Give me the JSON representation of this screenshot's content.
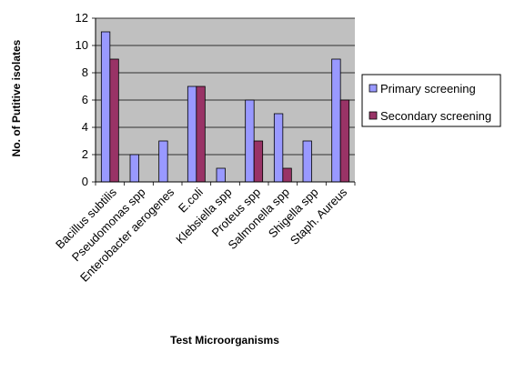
{
  "chart_data": {
    "type": "bar",
    "title": "",
    "xlabel": "Test Microorganisms",
    "ylabel": "No. of  Putitive  isolates",
    "ylim": [
      0,
      12
    ],
    "yticks": [
      0,
      2,
      4,
      6,
      8,
      10,
      12
    ],
    "grid": true,
    "legend_position": "right",
    "categories": [
      "Bacillus subtilis",
      "Pseudomonas spp",
      "Enterobacter aerogenes",
      "E.coli",
      "Klebsiella spp",
      "Proteus spp",
      "Salmonella spp",
      "Shigella spp",
      "Staph. Aureus"
    ],
    "series": [
      {
        "name": "Primary screening",
        "color": "#9999ff",
        "values": [
          11,
          2,
          3,
          7,
          1,
          6,
          5,
          3,
          9
        ]
      },
      {
        "name": "Secondary screening",
        "color": "#993366",
        "values": [
          9,
          0,
          0,
          7,
          0,
          3,
          1,
          0,
          6
        ]
      }
    ],
    "plot_background": "#c0c0c0"
  }
}
